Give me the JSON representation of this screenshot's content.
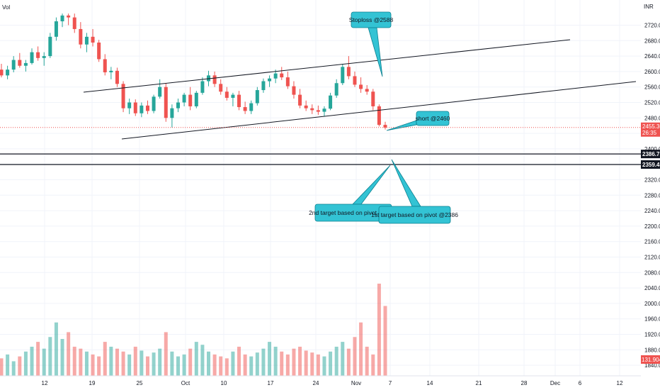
{
  "chart_data": {
    "type": "candlestick",
    "currency_label": "INR",
    "volume_label": "Vol",
    "x_ticks": [
      "12",
      "19",
      "25",
      "Oct",
      "10",
      "17",
      "24",
      "Nov",
      "7",
      "14",
      "21",
      "28",
      "Dec",
      "6",
      "12"
    ],
    "y_ticks": [
      "2720.00",
      "2680.00",
      "2640.00",
      "2600.00",
      "2560.00",
      "2520.00",
      "2480.00",
      "2440.00",
      "2400.00",
      "2360.00",
      "2320.00",
      "2280.00",
      "2240.00",
      "2200.00",
      "2160.00",
      "2120.00",
      "2080.00",
      "2040.00",
      "2000.00",
      "1960.00",
      "1920.00",
      "1880.00",
      "1840.00"
    ],
    "ylim": [
      1830,
      2750
    ],
    "last_price": {
      "value": 2455.3,
      "label": "2455.30",
      "countdown": "26:35"
    },
    "price_levels": [
      {
        "value": 2386.75,
        "label": "2386.75"
      },
      {
        "value": 2359.45,
        "label": "2359.45"
      }
    ],
    "volume_tag": {
      "label": "131.904K"
    },
    "channel_lines": [
      {
        "from": {
          "date": "2023-09-18",
          "price": 2560
        },
        "to": {
          "date": "2023-12-05",
          "price": 2680
        }
      },
      {
        "from": {
          "date": "2023-09-21",
          "price": 2467
        },
        "to": {
          "date": "2023-12-15",
          "price": 2598
        }
      }
    ],
    "callouts": [
      {
        "text": "Stoploss @2588",
        "anchor": {
          "date": "2023-11-08",
          "price": 2588
        }
      },
      {
        "text": "short @2460",
        "anchor": {
          "date": "2023-11-08",
          "price": 2460
        }
      },
      {
        "text": "2nd target based on pivot @2360",
        "anchor": {
          "date": "2023-11-09",
          "price": 2360
        }
      },
      {
        "text": "1st target based on pivot @2386",
        "anchor": {
          "date": "2023-11-09",
          "price": 2386
        }
      }
    ],
    "candles": [
      {
        "o": 2605,
        "h": 2620,
        "l": 2585,
        "c": 2590
      },
      {
        "o": 2590,
        "h": 2615,
        "l": 2580,
        "c": 2605
      },
      {
        "o": 2605,
        "h": 2640,
        "l": 2598,
        "c": 2630
      },
      {
        "o": 2630,
        "h": 2648,
        "l": 2610,
        "c": 2615
      },
      {
        "o": 2615,
        "h": 2630,
        "l": 2600,
        "c": 2622
      },
      {
        "o": 2622,
        "h": 2660,
        "l": 2618,
        "c": 2650
      },
      {
        "o": 2650,
        "h": 2665,
        "l": 2628,
        "c": 2635
      },
      {
        "o": 2635,
        "h": 2650,
        "l": 2615,
        "c": 2640
      },
      {
        "o": 2640,
        "h": 2700,
        "l": 2635,
        "c": 2690
      },
      {
        "o": 2690,
        "h": 2740,
        "l": 2680,
        "c": 2730
      },
      {
        "o": 2730,
        "h": 2750,
        "l": 2715,
        "c": 2745
      },
      {
        "o": 2745,
        "h": 2750,
        "l": 2720,
        "c": 2740
      },
      {
        "o": 2740,
        "h": 2750,
        "l": 2700,
        "c": 2710
      },
      {
        "o": 2710,
        "h": 2728,
        "l": 2660,
        "c": 2670
      },
      {
        "o": 2670,
        "h": 2700,
        "l": 2650,
        "c": 2690
      },
      {
        "o": 2690,
        "h": 2710,
        "l": 2665,
        "c": 2675
      },
      {
        "o": 2675,
        "h": 2682,
        "l": 2625,
        "c": 2632
      },
      {
        "o": 2632,
        "h": 2645,
        "l": 2590,
        "c": 2598
      },
      {
        "o": 2598,
        "h": 2612,
        "l": 2580,
        "c": 2602
      },
      {
        "o": 2602,
        "h": 2610,
        "l": 2560,
        "c": 2568
      },
      {
        "o": 2568,
        "h": 2575,
        "l": 2495,
        "c": 2505
      },
      {
        "o": 2505,
        "h": 2530,
        "l": 2490,
        "c": 2520
      },
      {
        "o": 2520,
        "h": 2528,
        "l": 2485,
        "c": 2492
      },
      {
        "o": 2492,
        "h": 2520,
        "l": 2482,
        "c": 2512
      },
      {
        "o": 2512,
        "h": 2525,
        "l": 2490,
        "c": 2498
      },
      {
        "o": 2498,
        "h": 2540,
        "l": 2492,
        "c": 2535
      },
      {
        "o": 2535,
        "h": 2580,
        "l": 2530,
        "c": 2560
      },
      {
        "o": 2560,
        "h": 2570,
        "l": 2470,
        "c": 2480
      },
      {
        "o": 2480,
        "h": 2515,
        "l": 2455,
        "c": 2505
      },
      {
        "o": 2505,
        "h": 2530,
        "l": 2495,
        "c": 2520
      },
      {
        "o": 2520,
        "h": 2545,
        "l": 2510,
        "c": 2540
      },
      {
        "o": 2540,
        "h": 2560,
        "l": 2500,
        "c": 2510
      },
      {
        "o": 2510,
        "h": 2550,
        "l": 2505,
        "c": 2545
      },
      {
        "o": 2545,
        "h": 2585,
        "l": 2540,
        "c": 2575
      },
      {
        "o": 2575,
        "h": 2602,
        "l": 2562,
        "c": 2590
      },
      {
        "o": 2590,
        "h": 2600,
        "l": 2560,
        "c": 2568
      },
      {
        "o": 2568,
        "h": 2580,
        "l": 2540,
        "c": 2548
      },
      {
        "o": 2548,
        "h": 2560,
        "l": 2525,
        "c": 2532
      },
      {
        "o": 2532,
        "h": 2545,
        "l": 2510,
        "c": 2540
      },
      {
        "o": 2540,
        "h": 2550,
        "l": 2500,
        "c": 2508
      },
      {
        "o": 2508,
        "h": 2522,
        "l": 2490,
        "c": 2498
      },
      {
        "o": 2498,
        "h": 2525,
        "l": 2490,
        "c": 2518
      },
      {
        "o": 2518,
        "h": 2560,
        "l": 2512,
        "c": 2552
      },
      {
        "o": 2552,
        "h": 2582,
        "l": 2545,
        "c": 2575
      },
      {
        "o": 2575,
        "h": 2590,
        "l": 2560,
        "c": 2582
      },
      {
        "o": 2582,
        "h": 2605,
        "l": 2570,
        "c": 2595
      },
      {
        "o": 2595,
        "h": 2612,
        "l": 2578,
        "c": 2585
      },
      {
        "o": 2585,
        "h": 2600,
        "l": 2555,
        "c": 2562
      },
      {
        "o": 2562,
        "h": 2575,
        "l": 2530,
        "c": 2540
      },
      {
        "o": 2540,
        "h": 2555,
        "l": 2505,
        "c": 2512
      },
      {
        "o": 2512,
        "h": 2525,
        "l": 2498,
        "c": 2505
      },
      {
        "o": 2505,
        "h": 2515,
        "l": 2490,
        "c": 2500
      },
      {
        "o": 2500,
        "h": 2512,
        "l": 2488,
        "c": 2496
      },
      {
        "o": 2496,
        "h": 2510,
        "l": 2485,
        "c": 2504
      },
      {
        "o": 2504,
        "h": 2545,
        "l": 2500,
        "c": 2538
      },
      {
        "o": 2538,
        "h": 2580,
        "l": 2532,
        "c": 2570
      },
      {
        "o": 2570,
        "h": 2620,
        "l": 2565,
        "c": 2612
      },
      {
        "o": 2612,
        "h": 2640,
        "l": 2580,
        "c": 2588
      },
      {
        "o": 2588,
        "h": 2600,
        "l": 2560,
        "c": 2566
      },
      {
        "o": 2566,
        "h": 2585,
        "l": 2545,
        "c": 2555
      },
      {
        "o": 2555,
        "h": 2565,
        "l": 2540,
        "c": 2548
      },
      {
        "o": 2548,
        "h": 2555,
        "l": 2500,
        "c": 2510
      },
      {
        "o": 2510,
        "h": 2515,
        "l": 2458,
        "c": 2462
      },
      {
        "o": 2462,
        "h": 2470,
        "l": 2450,
        "c": 2455
      }
    ],
    "volumes": [
      18,
      22,
      15,
      20,
      25,
      30,
      35,
      28,
      40,
      55,
      38,
      45,
      30,
      28,
      25,
      22,
      20,
      35,
      30,
      28,
      25,
      22,
      30,
      26,
      20,
      24,
      28,
      45,
      25,
      20,
      22,
      28,
      35,
      32,
      25,
      22,
      20,
      18,
      25,
      30,
      22,
      20,
      24,
      28,
      35,
      30,
      25,
      22,
      28,
      30,
      26,
      24,
      22,
      20,
      25,
      30,
      35,
      28,
      40,
      55,
      30,
      22,
      95,
      72
    ]
  }
}
